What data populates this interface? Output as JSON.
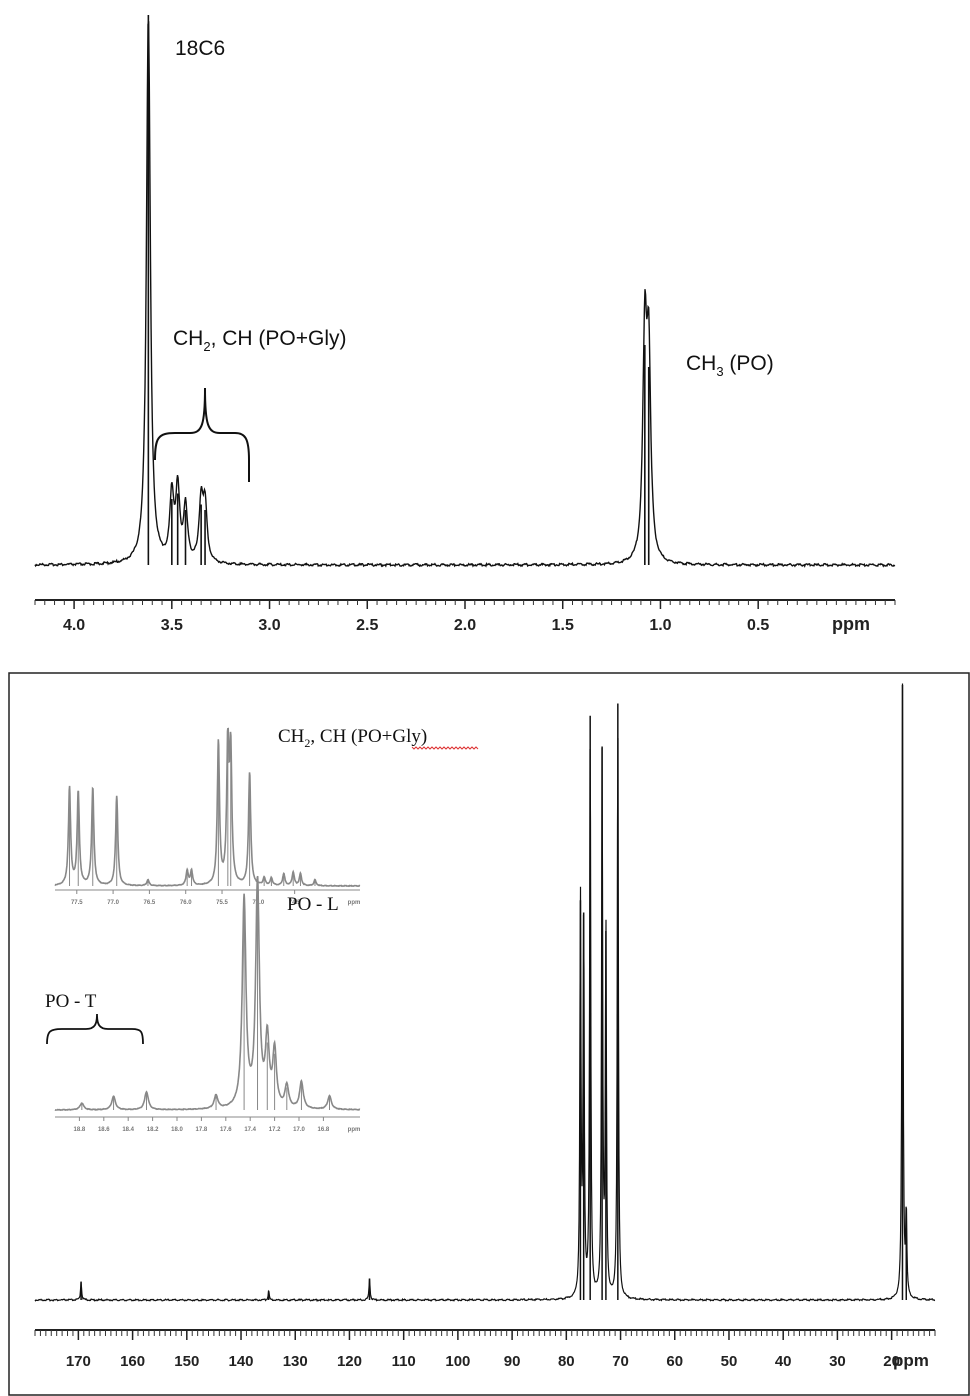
{
  "chart_data": [
    {
      "type": "line",
      "subtype": "1H NMR spectrum",
      "xlabel": "ppm",
      "xlim": [
        4.2,
        -0.2
      ],
      "x_reversed": true,
      "tick_labels": [
        "4.0",
        "3.5",
        "3.0",
        "2.5",
        "2.0",
        "1.5",
        "1.0",
        "0.5"
      ],
      "tick_values": [
        4.0,
        3.5,
        3.0,
        2.5,
        2.0,
        1.5,
        1.0,
        0.5
      ],
      "peaks": [
        {
          "x": 3.62,
          "height": 1.0
        },
        {
          "x": 3.5,
          "height": 0.12
        },
        {
          "x": 3.47,
          "height": 0.13
        },
        {
          "x": 3.43,
          "height": 0.1
        },
        {
          "x": 3.35,
          "height": 0.11
        },
        {
          "x": 3.33,
          "height": 0.1
        },
        {
          "x": 1.08,
          "height": 0.4
        },
        {
          "x": 1.06,
          "height": 0.36
        }
      ],
      "annotations": [
        {
          "text": "18C6",
          "x": 3.62
        },
        {
          "text_main": "CH",
          "sub": "2",
          "text_rest": ", CH (PO+Gly)",
          "x": 3.45
        },
        {
          "text_main": "CH",
          "sub": "3",
          "text_rest": " (PO)",
          "x": 1.07
        }
      ]
    },
    {
      "type": "line",
      "subtype": "13C NMR spectrum",
      "xlabel": "ppm",
      "xlim": [
        178,
        12
      ],
      "x_reversed": true,
      "tick_labels": [
        "170",
        "160",
        "150",
        "140",
        "130",
        "120",
        "110",
        "100",
        "90",
        "80",
        "70",
        "60",
        "50",
        "40",
        "30",
        "20"
      ],
      "tick_values": [
        170,
        160,
        150,
        140,
        130,
        120,
        110,
        100,
        90,
        80,
        70,
        60,
        50,
        40,
        30,
        20
      ],
      "peaks": [
        {
          "x": 169.5,
          "height": 0.03
        },
        {
          "x": 134.9,
          "height": 0.015
        },
        {
          "x": 116.3,
          "height": 0.035
        },
        {
          "x": 77.4,
          "height": 0.65
        },
        {
          "x": 76.8,
          "height": 0.63
        },
        {
          "x": 75.6,
          "height": 0.95
        },
        {
          "x": 73.4,
          "height": 0.9
        },
        {
          "x": 72.7,
          "height": 0.6
        },
        {
          "x": 70.5,
          "height": 0.97
        },
        {
          "x": 18.0,
          "height": 1.0
        },
        {
          "x": 17.3,
          "height": 0.14
        }
      ],
      "annotations": [
        {
          "text_main": "CH",
          "sub": "2",
          "text_rest": ", CH (PO+Gly)"
        },
        {
          "text": "PO - L"
        },
        {
          "text": "PO - T"
        }
      ],
      "insets": [
        {
          "xlim": [
            77.8,
            73.6
          ],
          "tick_labels": [
            "77.5",
            "77.0",
            "76.5",
            "76.0",
            "75.5",
            "75.0",
            "74.5",
            "ppm"
          ],
          "tick_values": [
            77.5,
            77.0,
            76.5,
            76.0,
            75.5,
            75.0,
            74.5
          ],
          "peaks": [
            {
              "x": 77.6,
              "height": 0.65
            },
            {
              "x": 77.48,
              "height": 0.62
            },
            {
              "x": 77.28,
              "height": 0.65
            },
            {
              "x": 76.95,
              "height": 0.6
            },
            {
              "x": 76.52,
              "height": 0.04
            },
            {
              "x": 75.98,
              "height": 0.1
            },
            {
              "x": 75.92,
              "height": 0.1
            },
            {
              "x": 75.55,
              "height": 0.95
            },
            {
              "x": 75.42,
              "height": 0.95
            },
            {
              "x": 75.38,
              "height": 0.85
            },
            {
              "x": 75.12,
              "height": 0.75
            },
            {
              "x": 74.92,
              "height": 0.05
            },
            {
              "x": 74.82,
              "height": 0.05
            },
            {
              "x": 74.65,
              "height": 0.08
            },
            {
              "x": 74.52,
              "height": 0.09
            },
            {
              "x": 74.42,
              "height": 0.08
            },
            {
              "x": 74.22,
              "height": 0.04
            }
          ]
        },
        {
          "xlim": [
            19.0,
            16.5
          ],
          "tick_labels": [
            "18.8",
            "18.6",
            "18.4",
            "18.2",
            "18.0",
            "17.8",
            "17.6",
            "17.4",
            "17.2",
            "17.0",
            "16.8",
            "ppm"
          ],
          "tick_values": [
            18.8,
            18.6,
            18.4,
            18.2,
            18.0,
            17.8,
            17.6,
            17.4,
            17.2,
            17.0,
            16.8
          ],
          "peaks": [
            {
              "x": 18.78,
              "height": 0.03
            },
            {
              "x": 18.52,
              "height": 0.06
            },
            {
              "x": 18.25,
              "height": 0.08
            },
            {
              "x": 17.68,
              "height": 0.06
            },
            {
              "x": 17.45,
              "height": 0.93
            },
            {
              "x": 17.34,
              "height": 1.0
            },
            {
              "x": 17.26,
              "height": 0.3
            },
            {
              "x": 17.2,
              "height": 0.25
            },
            {
              "x": 17.1,
              "height": 0.1
            },
            {
              "x": 16.98,
              "height": 0.12
            },
            {
              "x": 16.75,
              "height": 0.06
            }
          ]
        }
      ]
    }
  ]
}
